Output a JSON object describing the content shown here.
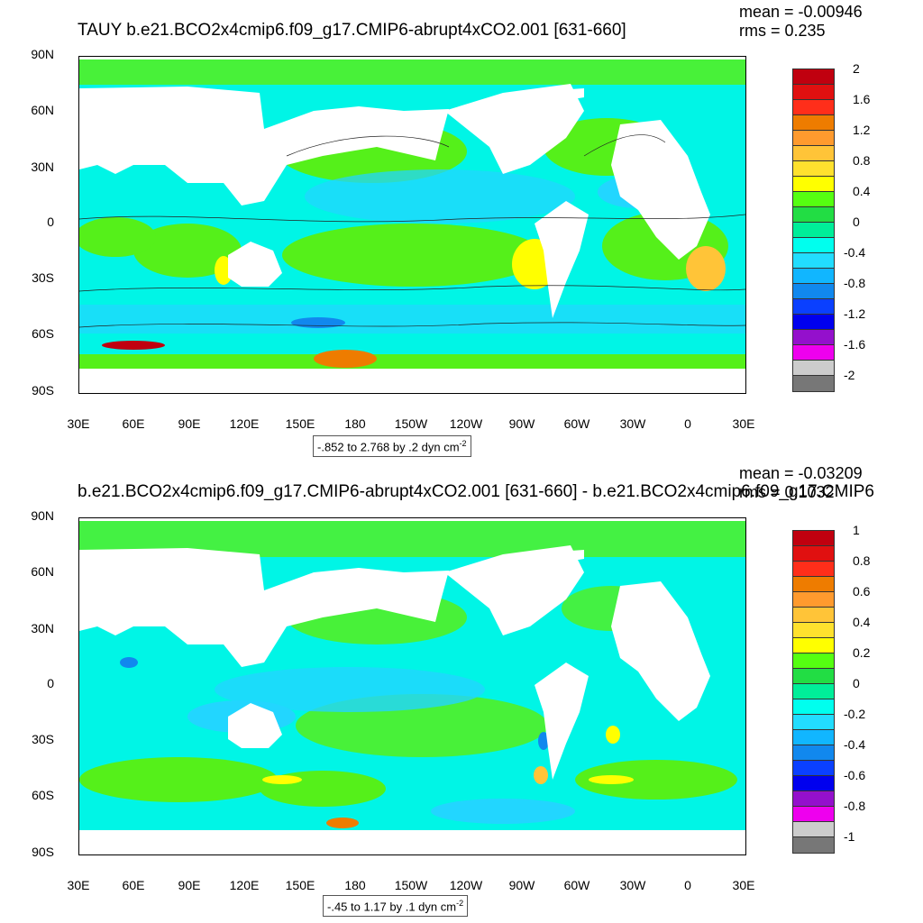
{
  "top": {
    "title": "TAUY b.e21.BCO2x4cmip6.f09_g17.CMIP6-abrupt4xCO2.001 [631-660]",
    "mean_text": "mean = -0.00946",
    "rms_text": "rms = 0.235",
    "range_text": "-.852 to 2.768 by .2 dyn cm",
    "range_units_exp": "-2",
    "colorbar": {
      "labels": [
        "2",
        "1.6",
        "1.2",
        "0.8",
        "0.4",
        "0",
        "-0.4",
        "-0.8",
        "-1.2",
        "-1.6",
        "-2"
      ],
      "colors": [
        "#c0000f",
        "#e01010",
        "#ff2e1a",
        "#ee7c00",
        "#ff9a2e",
        "#ffc438",
        "#ffe12e",
        "#ffff00",
        "#55ff11",
        "#22dd44",
        "#00ee99",
        "#00ffee",
        "#22ddff",
        "#11b6ff",
        "#1188ee",
        "#0a40ff",
        "#0000ee",
        "#9410cc",
        "#ee00ee",
        "#cccccc",
        "#777777"
      ]
    }
  },
  "bottom": {
    "title": "b.e21.BCO2x4cmip6.f09_g17.CMIP6-abrupt4xCO2.001 [631-660] - b.e21.BCO2x4cmip6.f09_g17.CMIP6",
    "mean_text": "mean = -0.03209",
    "rms_text": "rms = 0.1032",
    "range_text": "-.45 to 1.17 by .1 dyn cm",
    "range_units_exp": "-2",
    "colorbar": {
      "labels": [
        "1",
        "0.8",
        "0.6",
        "0.4",
        "0.2",
        "0",
        "-0.2",
        "-0.4",
        "-0.6",
        "-0.8",
        "-1"
      ],
      "colors": [
        "#c0000f",
        "#e01010",
        "#ff2e1a",
        "#ee7c00",
        "#ff9a2e",
        "#ffc438",
        "#ffe12e",
        "#ffff00",
        "#55ff11",
        "#22dd44",
        "#00ee99",
        "#00ffee",
        "#22ddff",
        "#11b6ff",
        "#1188ee",
        "#0a40ff",
        "#0000ee",
        "#9410cc",
        "#ee00ee",
        "#cccccc",
        "#777777"
      ]
    }
  },
  "axes": {
    "lat_labels": [
      "90N",
      "60N",
      "30N",
      "0",
      "30S",
      "60S",
      "90S"
    ],
    "lon_labels": [
      "30E",
      "60E",
      "90E",
      "120E",
      "150E",
      "180",
      "150W",
      "120W",
      "90W",
      "60W",
      "30W",
      "0",
      "30E"
    ]
  },
  "colors": {
    "ocean_base": "#00f5e6",
    "positive": "#55f01a",
    "negative": "#22d6ff",
    "land": "#ffffff"
  }
}
